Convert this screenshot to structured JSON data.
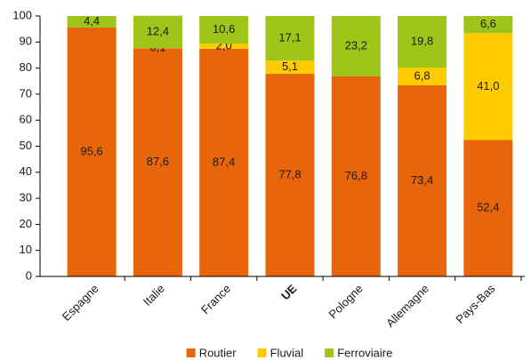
{
  "chart_data": {
    "type": "stacked_bar",
    "categories": [
      "Espagne",
      "Italie",
      "France",
      "UE",
      "Pologne",
      "Allemagne",
      "Pays-Bas"
    ],
    "series": [
      {
        "name": "Routier",
        "color": "#e8650a",
        "values": [
          95.6,
          87.6,
          87.4,
          77.8,
          76.8,
          73.4,
          52.4
        ],
        "value_labels": [
          "95,6",
          "87,6",
          "87,4",
          "77,8",
          "76,8",
          "73,4",
          "52,4"
        ]
      },
      {
        "name": "Fluvial",
        "color": "#fecb00",
        "values": [
          null,
          0.1,
          2.0,
          5.1,
          null,
          6.8,
          41.0
        ],
        "value_labels": [
          null,
          "0,1",
          "2,0",
          "5,1",
          null,
          "6,8",
          "41,0"
        ]
      },
      {
        "name": "Ferroviaire",
        "color": "#9fc41a",
        "values": [
          4.4,
          12.4,
          10.6,
          17.1,
          23.2,
          19.8,
          6.6
        ],
        "value_labels": [
          "4,4",
          "12,4",
          "10,6",
          "17,1",
          "23,2",
          "19,8",
          "6,6"
        ]
      }
    ],
    "ylim": [
      0,
      100
    ],
    "yticks": [
      0,
      10,
      20,
      30,
      40,
      50,
      60,
      70,
      80,
      90,
      100
    ],
    "legend": "bottom"
  }
}
